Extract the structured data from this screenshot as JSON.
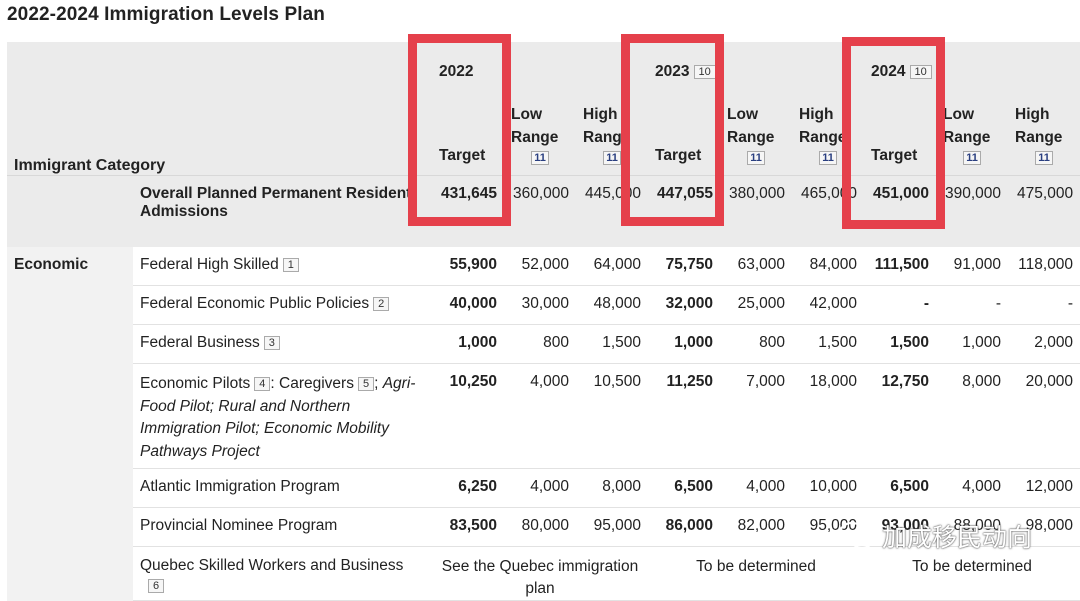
{
  "page_title": "2022-2024 Immigration Levels Plan",
  "header": {
    "category_label": "Immigrant Category",
    "years": [
      {
        "year": "2022",
        "footnote": ""
      },
      {
        "year": "2023",
        "footnote": "10"
      },
      {
        "year": "2024",
        "footnote": "10"
      }
    ],
    "target_label": "Target",
    "low_range_label": "Low Range",
    "high_range_label": "High Range",
    "range_footnote": "11"
  },
  "overall": {
    "label": "Overall Planned Permanent Resident Admissions",
    "values": [
      "431,645",
      "360,000",
      "445,000",
      "447,055",
      "380,000",
      "465,000",
      "451,000",
      "390,000",
      "475,000"
    ]
  },
  "section_label": "Economic",
  "rows": [
    {
      "label": "Federal High Skilled",
      "footnote": "1",
      "values": [
        "55,900",
        "52,000",
        "64,000",
        "75,750",
        "63,000",
        "84,000",
        "111,500",
        "91,000",
        "118,000"
      ]
    },
    {
      "label": "Federal Economic Public Policies",
      "footnote": "2",
      "values": [
        "40,000",
        "30,000",
        "48,000",
        "32,000",
        "25,000",
        "42,000",
        "-",
        "-",
        "-"
      ]
    },
    {
      "label": "Federal Business",
      "footnote": "3",
      "values": [
        "1,000",
        "800",
        "1,500",
        "1,000",
        "800",
        "1,500",
        "1,500",
        "1,000",
        "2,000"
      ]
    },
    {
      "label": "Economic Pilots",
      "footnote": "4",
      "label2": ": Caregivers",
      "footnote2": "5",
      "label3": ";",
      "italic": "Agri-Food Pilot; Rural and Northern Immigration Pilot; Economic Mobility Pathways Project",
      "values": [
        "10,250",
        "4,000",
        "10,500",
        "11,250",
        "7,000",
        "18,000",
        "12,750",
        "8,000",
        "20,000"
      ]
    },
    {
      "label": "Atlantic Immigration Program",
      "footnote": "",
      "values": [
        "6,250",
        "4,000",
        "8,000",
        "6,500",
        "4,000",
        "10,000",
        "6,500",
        "4,000",
        "12,000"
      ]
    },
    {
      "label": "Provincial Nominee Program",
      "footnote": "",
      "values": [
        "83,500",
        "80,000",
        "95,000",
        "86,000",
        "82,000",
        "95,000",
        "93,000",
        "88,000",
        "98,000"
      ]
    }
  ],
  "quebec": {
    "label": "Quebec Skilled Workers and Business",
    "footnote": "6",
    "note_2022": "See the Quebec immigration plan",
    "note_2023": "To be determined",
    "note_2024": "To be determined"
  },
  "watermark": {
    "text": "加成移民动向",
    "icon": "wechat-icon"
  },
  "highlight_color": "#e5404b"
}
